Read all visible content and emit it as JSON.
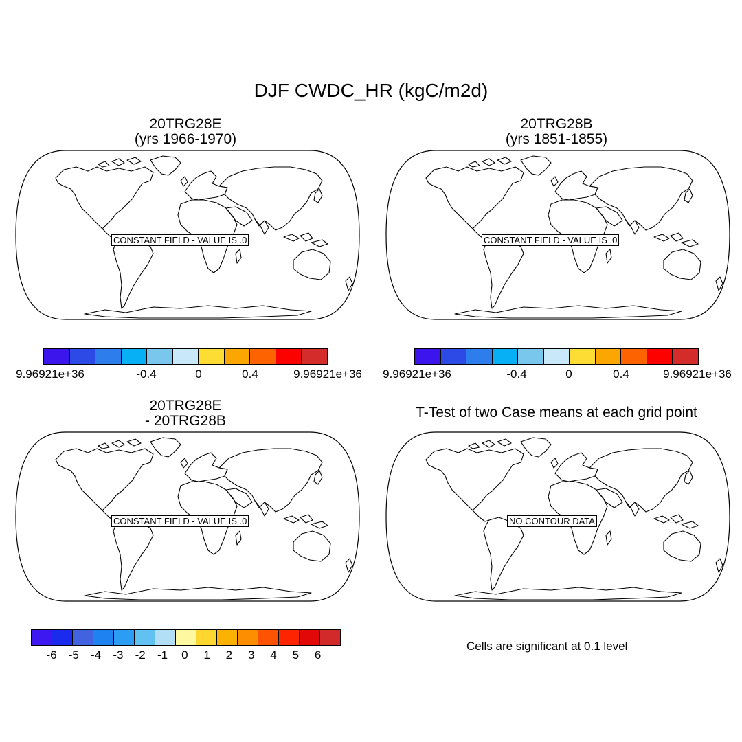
{
  "main_title": "DJF CWDC_HR (kgC/m2d)",
  "panels": [
    {
      "title_line1": "20TRG28E",
      "title_line2": "(yrs 1966-1970)",
      "map_label": "CONSTANT FIELD - VALUE IS .0"
    },
    {
      "title_line1": "20TRG28B",
      "title_line2": "(yrs 1851-1855)",
      "map_label": "CONSTANT FIELD - VALUE IS .0"
    },
    {
      "title_line1": "20TRG28E",
      "title_line2": "- 20TRG28B",
      "map_label": "CONSTANT FIELD - VALUE IS .0"
    },
    {
      "title_line1": "T-Test of two Case means at each grid point",
      "title_line2": "",
      "map_label": "NO CONTOUR DATA"
    }
  ],
  "colorbar_case": {
    "colors": [
      "#3c14ec",
      "#2d49e6",
      "#2e7ded",
      "#07aff5",
      "#7ac7ee",
      "#c9e9fb",
      "#fddd33",
      "#fca601",
      "#fe6302",
      "#fd0000",
      "#d42b2b"
    ],
    "tick_labels": [
      "9.96921e+36",
      "-0.4",
      "0",
      "0.4",
      "9.96921e+36"
    ]
  },
  "colorbar_diff": {
    "colors": [
      "#3d18f0",
      "#1b2bee",
      "#4163e0",
      "#1e82f0",
      "#2b9df5",
      "#61c1f0",
      "#b2dff5",
      "#fef9a1",
      "#fed630",
      "#fcb202",
      "#fd8d01",
      "#fd5200",
      "#fe2500",
      "#e30808",
      "#d22a2a"
    ],
    "tick_labels": [
      "-6",
      "-5",
      "-4",
      "-3",
      "-2",
      "-1",
      "0",
      "1",
      "2",
      "3",
      "4",
      "5",
      "6"
    ]
  },
  "significance_note": "Cells are significant at 0.1 level"
}
